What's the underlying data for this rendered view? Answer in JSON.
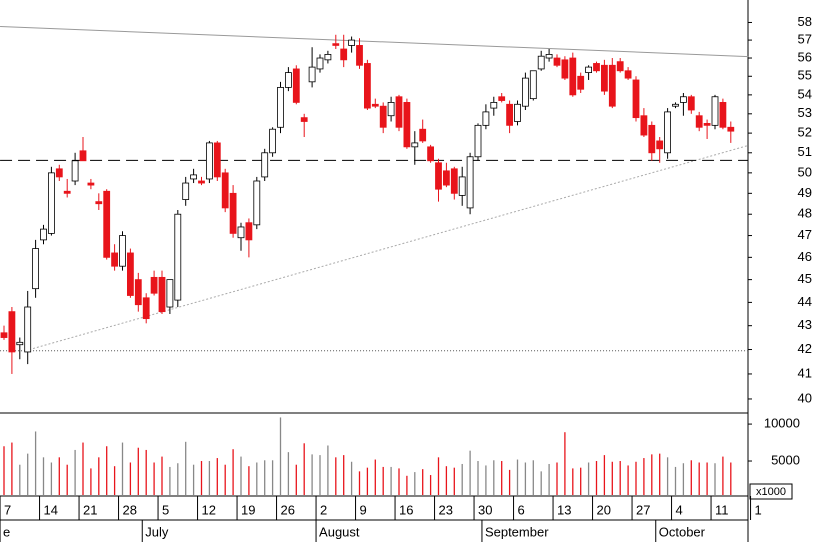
{
  "chart_data": {
    "type": "candlestick",
    "log_scale": true,
    "ylim": [
      39.45,
      59.3
    ],
    "yticks": [
      40,
      41,
      42,
      43,
      44,
      45,
      46,
      47,
      48,
      49,
      50,
      51,
      52,
      53,
      54,
      55,
      56,
      57,
      58
    ],
    "volume_ylim": [
      400,
      11500
    ],
    "volume_yticks": [
      5000,
      10000
    ],
    "volume_unit": "x1000",
    "up_color": "#ffffff",
    "down_color": "#e8141b",
    "xticks": [
      {
        "value": -0.5,
        "label": "7"
      },
      {
        "value": 4.5,
        "label": "14"
      },
      {
        "value": 9.5,
        "label": "21"
      },
      {
        "value": 14.5,
        "label": "28"
      },
      {
        "value": 19.5,
        "label": "5"
      },
      {
        "value": 24.5,
        "label": "12"
      },
      {
        "value": 29.5,
        "label": "19"
      },
      {
        "value": 34.5,
        "label": "26"
      },
      {
        "value": 39.5,
        "label": "2"
      },
      {
        "value": 44.5,
        "label": "9"
      },
      {
        "value": 49.5,
        "label": "16"
      },
      {
        "value": 54.5,
        "label": "23"
      },
      {
        "value": 59.5,
        "label": "30"
      },
      {
        "value": 64.5,
        "label": "6"
      },
      {
        "value": 69.5,
        "label": "13"
      },
      {
        "value": 74.5,
        "label": "20"
      },
      {
        "value": 79.5,
        "label": "27"
      },
      {
        "value": 84.5,
        "label": "4"
      },
      {
        "value": 89.5,
        "label": "11"
      },
      {
        "value": 94.5,
        "label": "1"
      }
    ],
    "months": [
      {
        "value": -0.5,
        "label": "e"
      },
      {
        "value": 17.5,
        "label": "July"
      },
      {
        "value": 39.5,
        "label": "August"
      },
      {
        "value": 60.5,
        "label": "September"
      },
      {
        "value": 82.5,
        "label": "October"
      }
    ],
    "trendlines": [
      {
        "x": [
          -0.5,
          94.2
        ],
        "y": [
          57.77,
          56.08
        ],
        "style": "solid"
      },
      {
        "x": [
          2.7,
          94.2
        ],
        "y": [
          41.95,
          51.37
        ],
        "style": "dotted"
      },
      {
        "x": [
          -0.5,
          94.2
        ],
        "y": [
          50.62,
          50.62
        ],
        "style": "dashed"
      },
      {
        "x": [
          -0.5,
          94.2
        ],
        "y": [
          41.95,
          41.95
        ],
        "style": "dotted2"
      }
    ],
    "open": [
      42.7,
      43.6,
      42.2,
      41.9,
      44.6,
      46.8,
      47.1,
      50.2,
      49.1,
      49.6,
      51.1,
      49.5,
      48.6,
      49.1,
      46.2,
      45.6,
      46.2,
      45,
      44.2,
      45.1,
      45.1,
      43.8,
      44.1,
      48.7,
      49.7,
      49.6,
      49.7,
      51.5,
      50,
      49,
      46.9,
      47.6,
      47.5,
      49.8,
      51,
      52.3,
      54.4,
      55.4,
      52.8,
      54.7,
      55.4,
      55.9,
      56.8,
      56.5,
      56.7,
      56.7,
      55.7,
      53.5,
      53.4,
      52.9,
      53.9,
      53.6,
      51.3,
      52.2,
      51.3,
      50.5,
      50.1,
      50.2,
      48.9,
      48.3,
      50.8,
      52.4,
      53.3,
      53.9,
      53.5,
      52.6,
      53.4,
      53.8,
      55.4,
      56,
      56,
      55.9,
      56,
      55,
      55.2,
      55.7,
      55.6,
      55.6,
      55.8,
      55.3,
      54.8,
      52.9,
      52.4,
      51.6,
      51,
      53.4,
      53.6,
      53.9,
      52.9,
      52.5,
      52.4,
      53.6,
      52.3
    ],
    "high": [
      43,
      43.8,
      42.5,
      44.5,
      46.8,
      47.5,
      50.3,
      50.4,
      49.7,
      51,
      51.8,
      49.7,
      49,
      49.2,
      46.6,
      47.2,
      46.4,
      45.3,
      44.4,
      45.4,
      45.4,
      45,
      48.2,
      49.8,
      50.2,
      49.8,
      51.6,
      51.6,
      50.2,
      49.4,
      47.6,
      47.8,
      49.8,
      51.2,
      52.3,
      54.7,
      55.5,
      55.6,
      53,
      56.6,
      56.2,
      56.4,
      57.3,
      57.3,
      57.2,
      57.1,
      55.9,
      53.8,
      53.6,
      53.9,
      54,
      53.8,
      52.1,
      52.7,
      51.4,
      50.7,
      50.5,
      50.3,
      50.3,
      51,
      52.5,
      53.5,
      53.9,
      54.1,
      53.7,
      53.7,
      55.2,
      55.3,
      56.4,
      56.5,
      56.2,
      56.1,
      56.3,
      55.2,
      55.6,
      55.8,
      55.9,
      56,
      56,
      55.5,
      55,
      53.3,
      52.6,
      51.8,
      53.3,
      53.6,
      54.1,
      54,
      53.1,
      52.7,
      54,
      53.8,
      52.6
    ],
    "low": [
      42.4,
      41,
      41.6,
      41.4,
      44.2,
      46.6,
      47,
      49.6,
      48.8,
      49.4,
      50.6,
      49.2,
      48.2,
      45.9,
      45.4,
      45.4,
      44.2,
      43.6,
      43.1,
      44.3,
      43.5,
      43.5,
      43.8,
      48.4,
      49.5,
      49.4,
      49.5,
      49.6,
      48.1,
      46.9,
      46.3,
      46,
      47.3,
      49.6,
      50.8,
      52,
      54.2,
      53.5,
      51.8,
      54.4,
      55.2,
      55.7,
      56.5,
      55.5,
      56.3,
      55.4,
      53.2,
      53.3,
      52,
      52.6,
      52.1,
      51.2,
      50.4,
      51.5,
      50.5,
      48.6,
      49.3,
      48.7,
      48.4,
      48,
      50.6,
      52.2,
      52.9,
      53.6,
      52,
      52.4,
      53.2,
      53.7,
      55.3,
      55.8,
      55.5,
      54.8,
      53.9,
      54.1,
      54.8,
      55.2,
      54,
      53.3,
      55.2,
      54.8,
      52.6,
      51.8,
      50.6,
      50.5,
      50.7,
      53.3,
      52.9,
      53,
      52.1,
      51.7,
      52.2,
      52.2,
      51.5
    ],
    "close": [
      42.5,
      41.9,
      42.3,
      43.8,
      46.4,
      47.3,
      50,
      49.8,
      49,
      50.6,
      50.6,
      49.4,
      48.5,
      46,
      45.6,
      47,
      44.3,
      43.9,
      43.3,
      44.4,
      43.6,
      45,
      48,
      49.5,
      49.9,
      49.5,
      51.5,
      49.8,
      48.3,
      47.1,
      47.4,
      46.8,
      49.6,
      51,
      52.2,
      54.4,
      55.2,
      53.6,
      52.6,
      55.5,
      56,
      56.2,
      56.7,
      55.9,
      57,
      55.6,
      53.3,
      53.4,
      52.3,
      53.6,
      52.3,
      51.3,
      51.5,
      51.6,
      50.6,
      49.2,
      49.4,
      49,
      49.8,
      50.8,
      52.4,
      53.1,
      53.6,
      53.7,
      52.4,
      53.5,
      54.9,
      55.3,
      56.1,
      56.2,
      55.6,
      54.9,
      54,
      54.3,
      55.5,
      55.3,
      54.2,
      53.4,
      55.3,
      54.9,
      52.8,
      51.9,
      51,
      51.2,
      53.1,
      53.5,
      53.9,
      53.2,
      52.3,
      52.4,
      53.9,
      52.3,
      52.1
    ],
    "volume": [
      7000,
      7500,
      4500,
      6000,
      9000,
      5500,
      4800,
      5500,
      4500,
      6500,
      7500,
      4000,
      5500,
      7000,
      4300,
      7500,
      4800,
      6800,
      6500,
      4800,
      5600,
      4200,
      4700,
      7600,
      4500,
      5000,
      5000,
      5400,
      4500,
      6600,
      5600,
      4300,
      4800,
      5100,
      5100,
      10900,
      6200,
      4500,
      7400,
      5900,
      5800,
      7100,
      5500,
      5800,
      4900,
      3600,
      4100,
      5200,
      4200,
      4200,
      4000,
      3000,
      3500,
      3900,
      3100,
      5500,
      4300,
      4100,
      4600,
      6400,
      5000,
      4400,
      5100,
      5000,
      3800,
      5200,
      4800,
      5100,
      3600,
      4600,
      4800,
      8900,
      4000,
      4100,
      4800,
      5000,
      5800,
      4900,
      5000,
      4400,
      4900,
      5400,
      5900,
      6000,
      5500,
      4200,
      4700,
      5100,
      4800,
      4800,
      4700,
      5600,
      4800
    ]
  }
}
